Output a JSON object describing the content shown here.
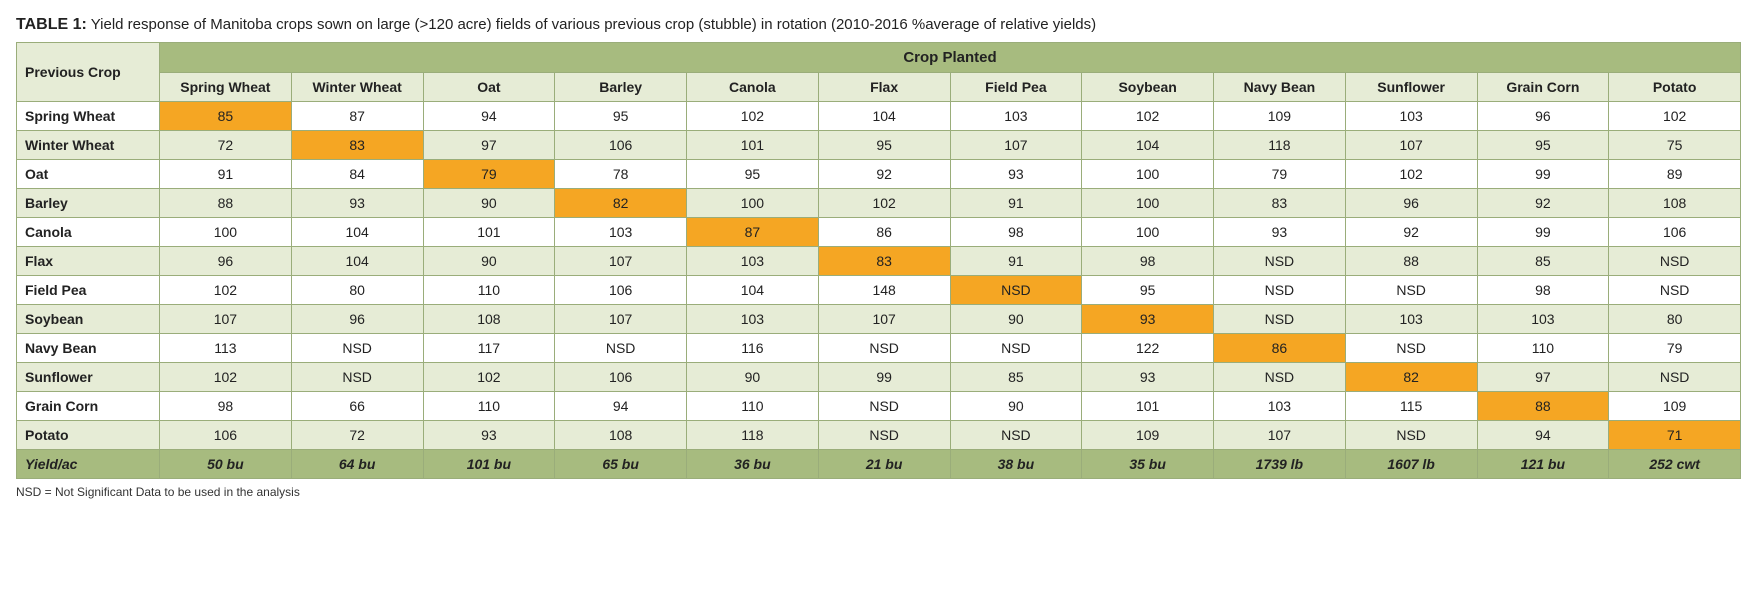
{
  "title_label": "TABLE 1:",
  "title_text": "Yield response of Manitoba crops sown on large (>120 acre) fields of various previous crop (stubble) in rotation (2010-2016 %average of relative yields)",
  "corner_label": "Previous Crop",
  "group_header": "Crop Planted",
  "columns": [
    "Spring Wheat",
    "Winter Wheat",
    "Oat",
    "Barley",
    "Canola",
    "Flax",
    "Field Pea",
    "Soybean",
    "Navy Bean",
    "Sunflower",
    "Grain Corn",
    "Potato"
  ],
  "rows": [
    {
      "label": "Spring Wheat",
      "cells": [
        "85",
        "87",
        "94",
        "95",
        "102",
        "104",
        "103",
        "102",
        "109",
        "103",
        "96",
        "102"
      ],
      "hl": [
        0
      ]
    },
    {
      "label": "Winter Wheat",
      "cells": [
        "72",
        "83",
        "97",
        "106",
        "101",
        "95",
        "107",
        "104",
        "118",
        "107",
        "95",
        "75"
      ],
      "hl": [
        1
      ]
    },
    {
      "label": "Oat",
      "cells": [
        "91",
        "84",
        "79",
        "78",
        "95",
        "92",
        "93",
        "100",
        "79",
        "102",
        "99",
        "89"
      ],
      "hl": [
        2
      ]
    },
    {
      "label": "Barley",
      "cells": [
        "88",
        "93",
        "90",
        "82",
        "100",
        "102",
        "91",
        "100",
        "83",
        "96",
        "92",
        "108"
      ],
      "hl": [
        3
      ]
    },
    {
      "label": "Canola",
      "cells": [
        "100",
        "104",
        "101",
        "103",
        "87",
        "86",
        "98",
        "100",
        "93",
        "92",
        "99",
        "106"
      ],
      "hl": [
        4
      ]
    },
    {
      "label": "Flax",
      "cells": [
        "96",
        "104",
        "90",
        "107",
        "103",
        "83",
        "91",
        "98",
        "NSD",
        "88",
        "85",
        "NSD"
      ],
      "hl": [
        5
      ]
    },
    {
      "label": "Field Pea",
      "cells": [
        "102",
        "80",
        "110",
        "106",
        "104",
        "148",
        "NSD",
        "95",
        "NSD",
        "NSD",
        "98",
        "NSD"
      ],
      "hl": [
        6
      ]
    },
    {
      "label": "Soybean",
      "cells": [
        "107",
        "96",
        "108",
        "107",
        "103",
        "107",
        "90",
        "93",
        "NSD",
        "103",
        "103",
        "80"
      ],
      "hl": [
        7
      ]
    },
    {
      "label": "Navy Bean",
      "cells": [
        "113",
        "NSD",
        "117",
        "NSD",
        "116",
        "NSD",
        "NSD",
        "122",
        "86",
        "NSD",
        "110",
        "79"
      ],
      "hl": [
        8
      ]
    },
    {
      "label": "Sunflower",
      "cells": [
        "102",
        "NSD",
        "102",
        "106",
        "90",
        "99",
        "85",
        "93",
        "NSD",
        "82",
        "97",
        "NSD"
      ],
      "hl": [
        9
      ]
    },
    {
      "label": "Grain Corn",
      "cells": [
        "98",
        "66",
        "110",
        "94",
        "110",
        "NSD",
        "90",
        "101",
        "103",
        "115",
        "88",
        "109"
      ],
      "hl": [
        10
      ]
    },
    {
      "label": "Potato",
      "cells": [
        "106",
        "72",
        "93",
        "108",
        "118",
        "NSD",
        "NSD",
        "109",
        "107",
        "NSD",
        "94",
        "71"
      ],
      "hl": [
        11
      ]
    }
  ],
  "yield_row": {
    "label": "Yield/ac",
    "cells": [
      "50 bu",
      "64 bu",
      "101 bu",
      "65 bu",
      "36 bu",
      "21 bu",
      "38 bu",
      "35 bu",
      "1739 lb",
      "1607 lb",
      "121 bu",
      "252 cwt"
    ]
  },
  "footnote": "NSD = Not Significant Data to be used in the analysis",
  "colors": {
    "header_bg": "#a7bb7f",
    "alt_bg": "#e6ecd6",
    "highlight": "#f5a623",
    "border": "#9aad7a"
  }
}
